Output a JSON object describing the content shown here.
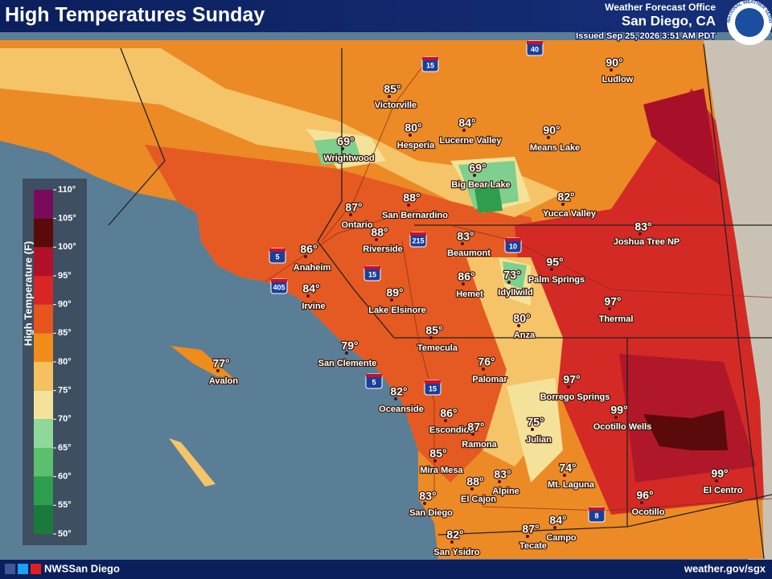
{
  "header": {
    "title": "High Temperatures Sunday",
    "office": "Weather Forecast Office",
    "location": "San Diego, CA",
    "issued": "Issued Sep 25, 2026 3:51 AM PDT",
    "logo_text": "NATIONAL WEATHER SERVICE"
  },
  "legend": {
    "title": "High Temperature (F)",
    "labels": [
      "110°",
      "105°",
      "100°",
      "95°",
      "90°",
      "85°",
      "80°",
      "75°",
      "70°",
      "65°",
      "60°",
      "55°",
      "50°"
    ],
    "colors": [
      "#7a0a5c",
      "#5a0a0a",
      "#b0102a",
      "#d92525",
      "#e8541e",
      "#f08c1a",
      "#f5c060",
      "#f5e29a",
      "#8fd89a",
      "#5cbf6e",
      "#2e9e4e",
      "#1a7a3a"
    ]
  },
  "cities": [
    {
      "temp": "85°",
      "name": "Victorville"
    },
    {
      "temp": "80°",
      "name": "Hesperia"
    },
    {
      "temp": "84°",
      "name": "Lucerne Valley"
    },
    {
      "temp": "90°",
      "name": "Means Lake"
    },
    {
      "temp": "90°",
      "name": "Ludlow"
    },
    {
      "temp": "69°",
      "name": "Wrightwood"
    },
    {
      "temp": "69°",
      "name": "Big Bear Lake"
    },
    {
      "temp": "82°",
      "name": "Yucca Valley"
    },
    {
      "temp": "83°",
      "name": "Joshua Tree NP"
    },
    {
      "temp": "87°",
      "name": "Ontario"
    },
    {
      "temp": "88°",
      "name": "San Bernardino"
    },
    {
      "temp": "88°",
      "name": "Riverside"
    },
    {
      "temp": "83°",
      "name": "Beaumont"
    },
    {
      "temp": "86°",
      "name": "Anaheim"
    },
    {
      "temp": "95°",
      "name": "Palm Springs"
    },
    {
      "temp": "84°",
      "name": "Irvine"
    },
    {
      "temp": "89°",
      "name": "Lake Elsinore"
    },
    {
      "temp": "86°",
      "name": "Hemet"
    },
    {
      "temp": "73°",
      "name": "Idyllwild"
    },
    {
      "temp": "97°",
      "name": "Thermal"
    },
    {
      "temp": "80°",
      "name": "Anza"
    },
    {
      "temp": "85°",
      "name": "Temecula"
    },
    {
      "temp": "79°",
      "name": "San Clemente"
    },
    {
      "temp": "77°",
      "name": "Avalon"
    },
    {
      "temp": "76°",
      "name": "Palomar"
    },
    {
      "temp": "97°",
      "name": "Borrego Springs"
    },
    {
      "temp": "82°",
      "name": "Oceanside"
    },
    {
      "temp": "86°",
      "name": "Escondido"
    },
    {
      "temp": "87°",
      "name": "Ramona"
    },
    {
      "temp": "99°",
      "name": "Ocotillo Wells"
    },
    {
      "temp": "75°",
      "name": "Julian"
    },
    {
      "temp": "85°",
      "name": "Mira Mesa"
    },
    {
      "temp": "74°",
      "name": "Mt. Laguna"
    },
    {
      "temp": "83°",
      "name": "Alpine"
    },
    {
      "temp": "88°",
      "name": "El Cajon"
    },
    {
      "temp": "83°",
      "name": "San Diego"
    },
    {
      "temp": "99°",
      "name": "El Centro"
    },
    {
      "temp": "96°",
      "name": "Ocotillo"
    },
    {
      "temp": "82°",
      "name": "San Ysidro"
    },
    {
      "temp": "84°",
      "name": "Campo"
    },
    {
      "temp": "87°",
      "name": "Tecate"
    }
  ],
  "highways": [
    "15",
    "40",
    "10",
    "5",
    "405",
    "215",
    "15",
    "5",
    "15",
    "8"
  ],
  "footer": {
    "social": "NWSSan Diego",
    "website": "weather.gov/sgx"
  }
}
